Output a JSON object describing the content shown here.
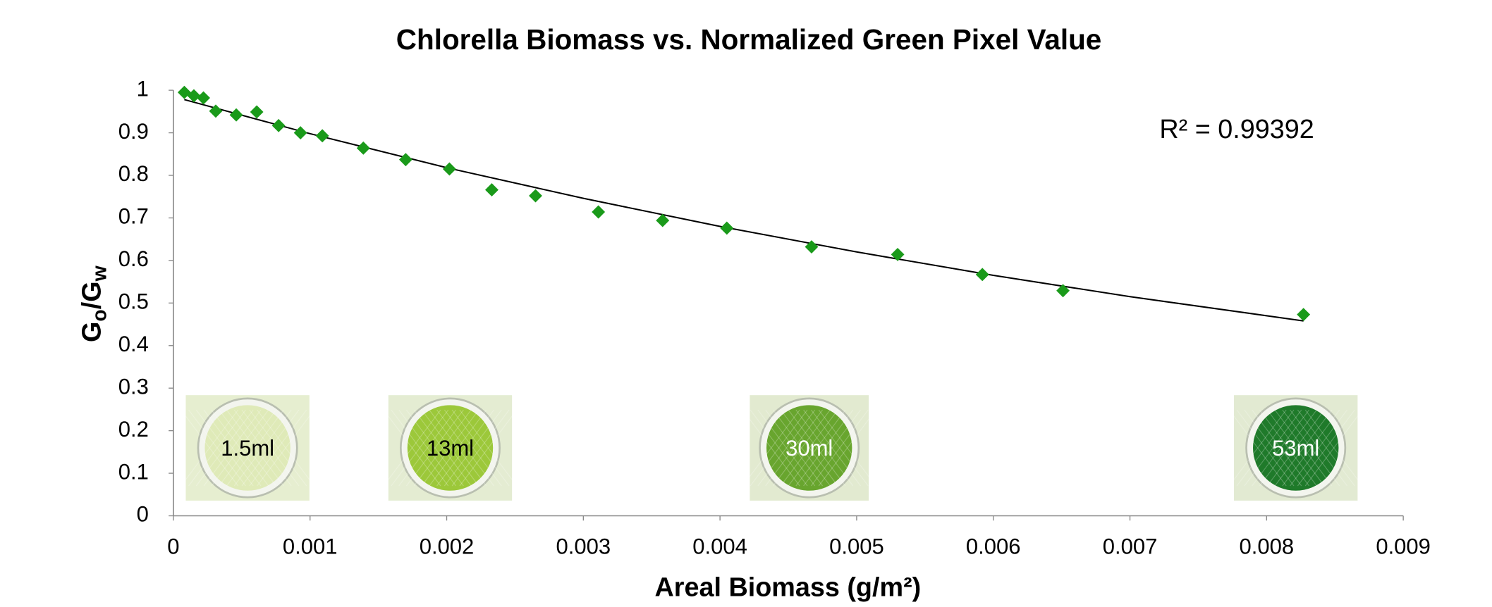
{
  "chart_data": {
    "type": "scatter",
    "title": "Chlorella Biomass vs. Normalized Green Pixel Value",
    "xlabel": "Areal Biomass (g/m²)",
    "ylabel": [
      "G",
      "o",
      "/G",
      "w"
    ],
    "annotation": "R² = 0.99392",
    "xlim": [
      0,
      0.009
    ],
    "xticks": [
      0,
      0.001,
      0.002,
      0.003,
      0.004,
      0.005,
      0.006,
      0.007,
      0.008,
      0.009
    ],
    "ylim": [
      0,
      1
    ],
    "yticks": [
      0,
      0.1,
      0.2,
      0.3,
      0.4,
      0.5,
      0.6,
      0.7,
      0.8,
      0.9,
      1
    ],
    "grid": false,
    "color": "#1a9a1a",
    "x": [
      8e-05,
      0.00015,
      0.00022,
      0.00031,
      0.00046,
      0.00061,
      0.00077,
      0.00093,
      0.00109,
      0.00139,
      0.0017,
      0.00202,
      0.00233,
      0.00265,
      0.00311,
      0.00358,
      0.00405,
      0.00467,
      0.0053,
      0.00592,
      0.00651,
      0.00827
    ],
    "values": [
      0.995,
      0.987,
      0.982,
      0.951,
      0.942,
      0.949,
      0.917,
      0.9,
      0.893,
      0.864,
      0.837,
      0.815,
      0.766,
      0.752,
      0.714,
      0.694,
      0.676,
      0.632,
      0.614,
      0.567,
      0.529,
      0.473
    ],
    "trendline": {
      "color": "#000000",
      "x": [
        8e-05,
        0.001,
        0.002,
        0.003,
        0.004,
        0.005,
        0.006,
        0.007,
        0.00827
      ],
      "values": [
        0.978,
        0.898,
        0.818,
        0.746,
        0.68,
        0.62,
        0.565,
        0.515,
        0.458
      ]
    },
    "insets": [
      "1.5ml",
      "13ml",
      "30ml",
      "53ml"
    ]
  }
}
